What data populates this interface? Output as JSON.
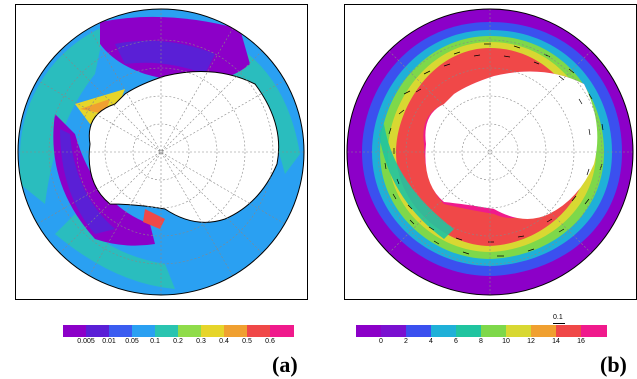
{
  "panels": [
    {
      "label": "(a)",
      "colorbar": {
        "colors": [
          "#8c00c8",
          "#5a1fd6",
          "#3b5cf0",
          "#2aa0f2",
          "#2ac4b0",
          "#8fdc4a",
          "#e6d52a",
          "#f0a030",
          "#f04848",
          "#f01a8c"
        ],
        "ticks": [
          "0.005",
          "0.01",
          "0.05",
          "0.1",
          "0.2",
          "0.3",
          "0.4",
          "0.5",
          "0.6"
        ]
      }
    },
    {
      "label": "(b)",
      "colorbar": {
        "colors": [
          "#8c00c8",
          "#7a10d0",
          "#3b50ef",
          "#1fb0d8",
          "#20c4a0",
          "#7ed84a",
          "#d8d832",
          "#f0a030",
          "#f04848",
          "#f01a8c"
        ],
        "ticks": [
          "0",
          "2",
          "4",
          "6",
          "8",
          "10",
          "12",
          "14",
          "16"
        ]
      },
      "vector_reference": "0.1"
    }
  ]
}
